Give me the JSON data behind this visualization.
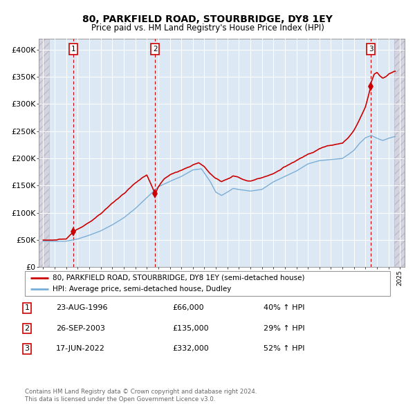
{
  "title1": "80, PARKFIELD ROAD, STOURBRIDGE, DY8 1EY",
  "title2": "Price paid vs. HM Land Registry's House Price Index (HPI)",
  "ylim": [
    0,
    420000
  ],
  "yticks": [
    0,
    50000,
    100000,
    150000,
    200000,
    250000,
    300000,
    350000,
    400000
  ],
  "ytick_labels": [
    "£0",
    "£50K",
    "£100K",
    "£150K",
    "£200K",
    "£250K",
    "£300K",
    "£350K",
    "£400K"
  ],
  "xlim_start": 1993.6,
  "xlim_end": 2025.4,
  "hpi_color": "#7aaed6",
  "price_color": "#cc0000",
  "dot_color": "#cc0000",
  "vline_color": "#cc0000",
  "bg_plot": "#dde8f5",
  "bg_hatch": "#d4d4e0",
  "legend_line1": "80, PARKFIELD ROAD, STOURBRIDGE, DY8 1EY (semi-detached house)",
  "legend_line2": "HPI: Average price, semi-detached house, Dudley",
  "transactions": [
    {
      "num": 1,
      "date": "23-AUG-1996",
      "year": 1996.64,
      "price": 66000,
      "pct": "40%",
      "dir": "↑"
    },
    {
      "num": 2,
      "date": "26-SEP-2003",
      "year": 2003.73,
      "price": 135000,
      "pct": "29%",
      "dir": "↑"
    },
    {
      "num": 3,
      "date": "17-JUN-2022",
      "year": 2022.46,
      "price": 332000,
      "pct": "52%",
      "dir": "↑"
    }
  ],
  "footer1": "Contains HM Land Registry data © Crown copyright and database right 2024.",
  "footer2": "This data is licensed under the Open Government Licence v3.0.",
  "hatch_left_end": 1994.5,
  "hatch_right_start": 2024.5
}
